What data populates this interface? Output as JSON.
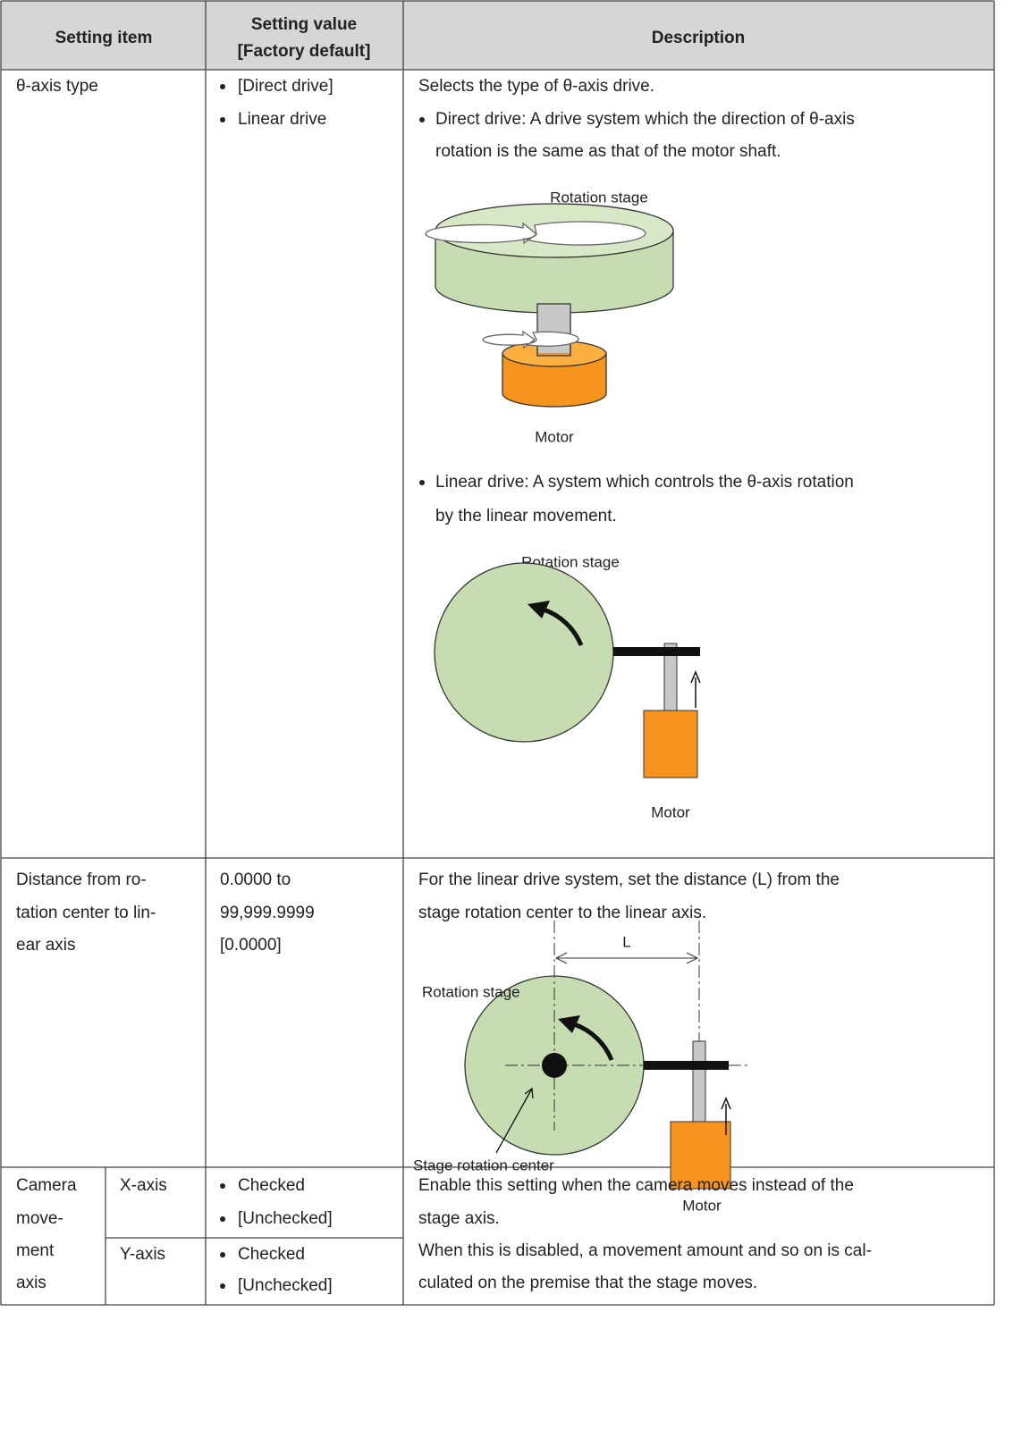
{
  "table": {
    "header": {
      "item": "Setting item",
      "value": [
        "Setting value",
        "[Factory default]"
      ],
      "description": "Description"
    },
    "rows": [
      {
        "item": [
          "θ-axis type"
        ],
        "values": [
          "[Direct drive]",
          "Linear drive"
        ],
        "description": {
          "intro": "Selects the type of θ-axis drive.",
          "bullets": [
            {
              "lines": [
                "Direct drive: A drive system which the direction of θ-axis",
                "rotation is the same as that of the motor shaft."
              ],
              "figure": {
                "stage": "Rotation stage",
                "motor": "Motor"
              }
            },
            {
              "lines": [
                "Linear drive: A system which controls the θ-axis rotation",
                "by the linear movement."
              ],
              "figure": {
                "stage": "Rotation stage",
                "motor": "Motor"
              }
            }
          ]
        }
      },
      {
        "item": [
          "Distance from ro-",
          "tation center to lin-",
          "ear axis"
        ],
        "values": [
          "0.0000 to",
          "99,999.9999",
          "[0.0000]"
        ],
        "description": {
          "lines": [
            "For the linear drive system, set the distance (L) from the",
            "stage rotation center to the linear axis."
          ],
          "figure": {
            "distance": "L",
            "stage": "Rotation stage",
            "center": "Stage rotation center",
            "motor": "Motor"
          }
        }
      },
      {
        "item": [
          "Camera",
          "move-",
          "ment",
          "axis"
        ],
        "sub": [
          {
            "axis": "X-axis",
            "values": [
              "Checked",
              "[Unchecked]"
            ]
          },
          {
            "axis": "Y-axis",
            "values": [
              "Checked",
              "[Unchecked]"
            ]
          }
        ],
        "description": [
          "Enable this setting when the camera moves instead of the",
          "stage axis.",
          "When this is disabled, a movement amount and so on is cal-",
          "culated on the premise that the stage moves."
        ]
      }
    ]
  }
}
